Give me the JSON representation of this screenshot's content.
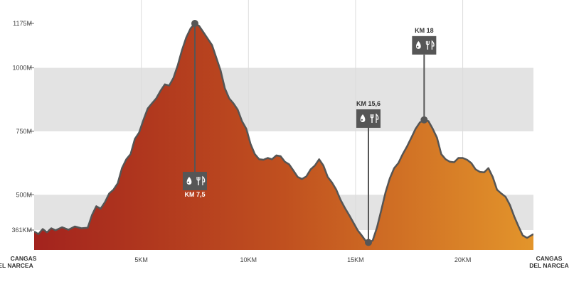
{
  "chart_data": {
    "type": "area",
    "title": "",
    "xlabel": "",
    "ylabel": "",
    "xlim": [
      0,
      23.3
    ],
    "ylim": [
      295,
      1200
    ],
    "y_ticks": [
      {
        "value": 361,
        "label": "361KM"
      },
      {
        "value": 500,
        "label": "500M"
      },
      {
        "value": 750,
        "label": "750M"
      },
      {
        "value": 1000,
        "label": "1000M"
      },
      {
        "value": 1175,
        "label": "1175M"
      }
    ],
    "x_ticks": [
      {
        "value": 5,
        "label": "5KM"
      },
      {
        "value": 10,
        "label": "10KM"
      },
      {
        "value": 15,
        "label": "15KM"
      },
      {
        "value": 20,
        "label": "20KM"
      }
    ],
    "start_label": {
      "line1": "CANGAS",
      "line2": "EL NARCEA"
    },
    "end_label": {
      "line1": "CANGAS",
      "line2": "DEL NARCEA"
    },
    "grid": "horizontal bands",
    "bands": [
      [
        500,
        361
      ],
      [
        1000,
        750
      ]
    ],
    "gradient_colors": [
      "#a3231e",
      "#c0501f",
      "#e3952b"
    ],
    "line_color": "#555555",
    "marker_color": "#565656",
    "profile_km": [
      0,
      0.2,
      0.4,
      0.6,
      0.8,
      1.0,
      1.3,
      1.6,
      1.9,
      2.2,
      2.5,
      2.7,
      2.9,
      3.1,
      3.3,
      3.5,
      3.7,
      3.9,
      4.1,
      4.3,
      4.5,
      4.7,
      4.9,
      5.1,
      5.3,
      5.5,
      5.7,
      5.9,
      6.1,
      6.3,
      6.5,
      6.7,
      6.9,
      7.1,
      7.3,
      7.5,
      7.7,
      7.9,
      8.1,
      8.3,
      8.5,
      8.7,
      8.9,
      9.1,
      9.3,
      9.5,
      9.7,
      9.9,
      10.1,
      10.3,
      10.5,
      10.7,
      10.9,
      11.1,
      11.3,
      11.5,
      11.7,
      11.9,
      12.1,
      12.3,
      12.5,
      12.7,
      12.9,
      13.1,
      13.3,
      13.5,
      13.7,
      13.9,
      14.1,
      14.3,
      14.5,
      14.7,
      14.9,
      15.1,
      15.3,
      15.5,
      15.6,
      15.8,
      16.0,
      16.2,
      16.4,
      16.6,
      16.8,
      17.0,
      17.2,
      17.4,
      17.6,
      17.8,
      18.0,
      18.2,
      18.4,
      18.6,
      18.8,
      19.0,
      19.2,
      19.4,
      19.6,
      19.8,
      20.0,
      20.2,
      20.4,
      20.6,
      20.8,
      21.0,
      21.2,
      21.4,
      21.6,
      21.8,
      22.0,
      22.2,
      22.4,
      22.6,
      22.8,
      23.0,
      23.3
    ],
    "profile_m": [
      355,
      345,
      365,
      352,
      368,
      360,
      372,
      362,
      375,
      368,
      370,
      420,
      455,
      445,
      470,
      505,
      520,
      545,
      605,
      640,
      660,
      720,
      745,
      795,
      840,
      860,
      880,
      910,
      935,
      930,
      960,
      1010,
      1070,
      1120,
      1155,
      1175,
      1165,
      1140,
      1115,
      1090,
      1040,
      990,
      920,
      880,
      860,
      835,
      790,
      760,
      700,
      660,
      640,
      638,
      645,
      640,
      655,
      652,
      630,
      620,
      595,
      570,
      562,
      572,
      600,
      615,
      640,
      615,
      570,
      548,
      520,
      480,
      448,
      420,
      390,
      360,
      338,
      315,
      312,
      320,
      372,
      440,
      510,
      565,
      605,
      625,
      660,
      690,
      725,
      760,
      785,
      795,
      790,
      760,
      725,
      660,
      640,
      630,
      628,
      645,
      645,
      638,
      625,
      600,
      590,
      588,
      605,
      570,
      520,
      505,
      492,
      460,
      415,
      376,
      340,
      330,
      345
    ],
    "waypoints": [
      {
        "km": 7.5,
        "elev": 1175,
        "label": "KM 7,5",
        "label_pos": "below",
        "icons": [
          "water",
          "food"
        ]
      },
      {
        "km": 15.6,
        "elev": 312,
        "label": "KM 15,6",
        "label_pos": "above",
        "icons": [
          "water",
          "food"
        ]
      },
      {
        "km": 18.2,
        "elev": 795,
        "label": "KM 18",
        "label_pos": "above",
        "icons": [
          "water",
          "food"
        ]
      }
    ]
  }
}
